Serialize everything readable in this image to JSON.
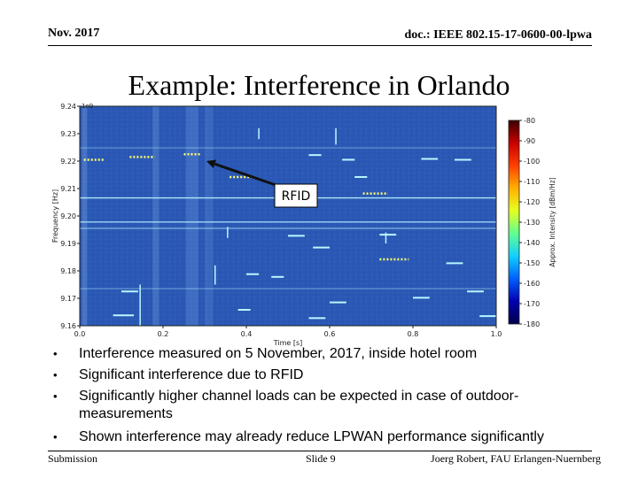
{
  "header": {
    "date": "Nov. 2017",
    "doc_id": "doc.: IEEE 802.15-17-0600-00-lpwa"
  },
  "title": "Example: Interference in Orlando",
  "figure": {
    "callout_label": "RFID",
    "colors": {
      "background": "#2a58b4",
      "trace": "#b8f8ff",
      "rfid": "#fffc70",
      "arrow": "#111111"
    },
    "colorbar_stops": [
      "#3b0000",
      "#c80000",
      "#ff4000",
      "#ffb000",
      "#e6ff20",
      "#60ff90",
      "#10d0ff",
      "#0060ff",
      "#0000b0",
      "#00004a"
    ]
  },
  "chart_data": {
    "type": "heatmap",
    "title": "",
    "xlabel": "Time [s]",
    "ylabel": "Frequency [Hz]",
    "y_multiplier": "1e9",
    "x_ticks": [
      "0.0",
      "0.2",
      "0.4",
      "0.6",
      "0.8",
      "1.0"
    ],
    "y_ticks": [
      "9.24",
      "9.23",
      "9.22",
      "9.21",
      "9.20",
      "9.19",
      "9.18",
      "9.17",
      "9.16"
    ],
    "xlim": [
      0,
      1.0
    ],
    "ylim": [
      9.16,
      9.24
    ],
    "colorbar_label": "Approx. Intensity [dBm/Hz]",
    "colorbar_ticks": [
      "-80",
      "-90",
      "-100",
      "-110",
      "-120",
      "-130",
      "-140",
      "-150",
      "-160",
      "-170",
      "-180"
    ],
    "colorbar_range": [
      -180,
      -80
    ],
    "annotation": {
      "text": "RFID",
      "points_to": {
        "x": 0.3,
        "y": 9.22
      }
    }
  },
  "bullets": [
    "Interference measured on 5 November, 2017, inside hotel room",
    "Significant interference due to RFID",
    "Significantly higher channel loads can be expected in case of outdoor-measurements",
    "Shown interference may already reduce LPWAN performance significantly"
  ],
  "footer": {
    "left": "Submission",
    "center": "Slide 9",
    "right": "Joerg Robert, FAU Erlangen-Nuernberg"
  }
}
